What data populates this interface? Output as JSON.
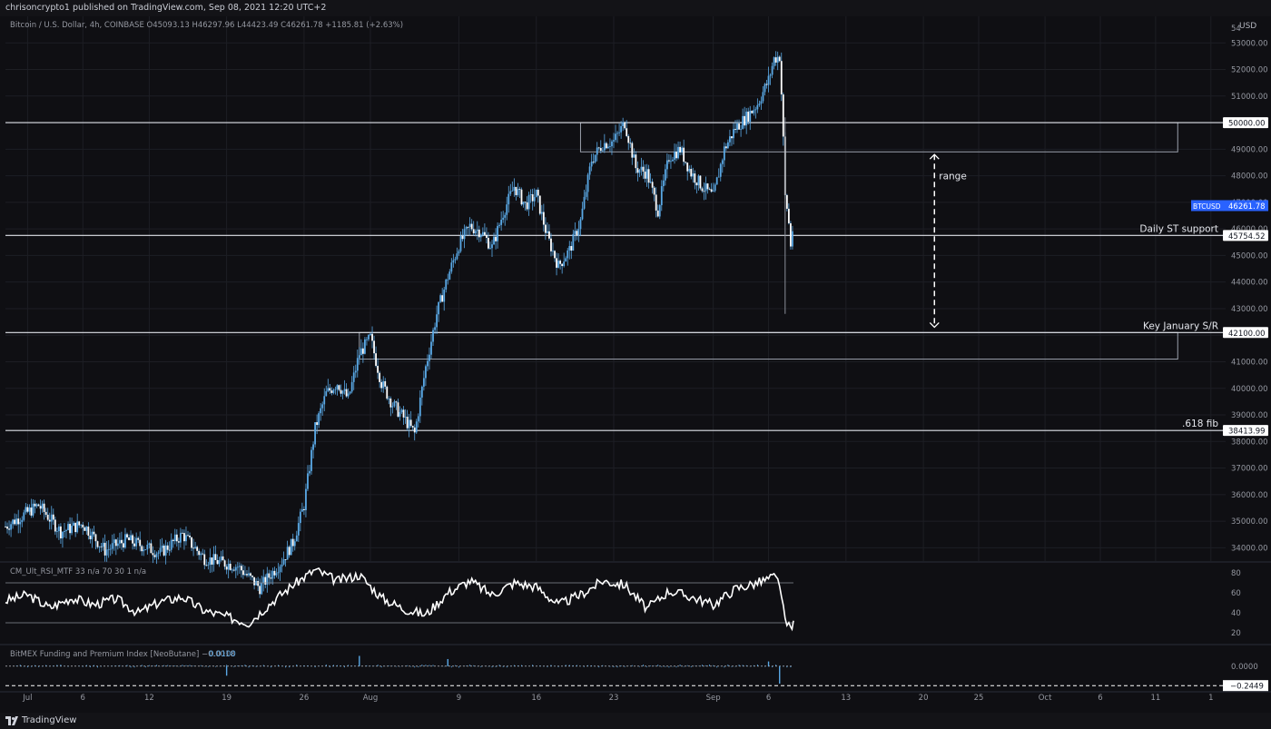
{
  "header": {
    "published": "chrisoncrypto1 published on TradingView.com, Sep 08, 2021 12:20 UTC+2"
  },
  "footer": {
    "brand": "TradingView"
  },
  "legend": {
    "symbol": "Bitcoin / U.S. Dollar, 4h, COINBASE",
    "ohlc": "O45093.13 H46297.96 L44423.49 C46261.78 +1185.81 (+2.63%)",
    "currency": "USD"
  },
  "colors": {
    "background": "#0f0f13",
    "candle": "#5aa9e6",
    "line": "#e0e3ea",
    "grid": "#1d1e24",
    "rsi": "#ffffff",
    "tag": "#2962ff"
  },
  "chart_data": [
    {
      "type": "candlestick",
      "title": "Bitcoin / U.S. Dollar, 4h, COINBASE",
      "ylim": [
        33500,
        54000
      ],
      "yticks": [
        34000,
        35000,
        36000,
        37000,
        38000,
        39000,
        40000,
        41000,
        42000,
        43000,
        44000,
        45000,
        46000,
        47000,
        48000,
        49000,
        50000,
        51000,
        52000,
        53000
      ],
      "ytick_labels": [
        "34000.00",
        "35000.00",
        "36000.00",
        "37000.00",
        "38000.00",
        "39000.00",
        "40000.00",
        "41000.00",
        "42000.00",
        "43000.00",
        "44000.00",
        "45000.00",
        "46000.00",
        "47000.00",
        "48000.00",
        "49000.00",
        "50000.00",
        "51000.00",
        "52000.00",
        "53000.00"
      ],
      "top_partial_label": "54",
      "xlim": [
        "2021-06-29",
        "2021-10-17"
      ],
      "xticks": [
        {
          "label": "Jul",
          "date": "2021-07-01"
        },
        {
          "label": "6",
          "date": "2021-07-06"
        },
        {
          "label": "12",
          "date": "2021-07-12"
        },
        {
          "label": "19",
          "date": "2021-07-19"
        },
        {
          "label": "26",
          "date": "2021-07-26"
        },
        {
          "label": "Aug",
          "date": "2021-08-01"
        },
        {
          "label": "9",
          "date": "2021-08-09"
        },
        {
          "label": "16",
          "date": "2021-08-16"
        },
        {
          "label": "23",
          "date": "2021-08-23"
        },
        {
          "label": "Sep",
          "date": "2021-09-01"
        },
        {
          "label": "6",
          "date": "2021-09-06"
        },
        {
          "label": "13",
          "date": "2021-09-13"
        },
        {
          "label": "20",
          "date": "2021-09-20"
        },
        {
          "label": "25",
          "date": "2021-09-25"
        },
        {
          "label": "Oct",
          "date": "2021-10-01"
        },
        {
          "label": "6",
          "date": "2021-10-06"
        },
        {
          "label": "11",
          "date": "2021-10-11"
        },
        {
          "label": "1",
          "date": "2021-10-16"
        }
      ],
      "price_path": [
        [
          "2021-06-29",
          34800
        ],
        [
          "2021-07-02",
          35600
        ],
        [
          "2021-07-04",
          34600
        ],
        [
          "2021-07-06",
          34900
        ],
        [
          "2021-07-08",
          33900
        ],
        [
          "2021-07-10",
          34300
        ],
        [
          "2021-07-13",
          33800
        ],
        [
          "2021-07-15",
          34500
        ],
        [
          "2021-07-17",
          33600
        ],
        [
          "2021-07-20",
          33300
        ],
        [
          "2021-07-22",
          32500
        ],
        [
          "2021-07-24",
          33500
        ],
        [
          "2021-07-25",
          34200
        ],
        [
          "2021-07-26",
          35600
        ],
        [
          "2021-07-27",
          38500
        ],
        [
          "2021-07-28",
          39800
        ],
        [
          "2021-07-29",
          40200
        ],
        [
          "2021-07-30",
          39600
        ],
        [
          "2021-07-31",
          41300
        ],
        [
          "2021-08-01",
          41900
        ],
        [
          "2021-08-02",
          40200
        ],
        [
          "2021-08-03",
          39400
        ],
        [
          "2021-08-04",
          38900
        ],
        [
          "2021-08-05",
          38300
        ],
        [
          "2021-08-06",
          40800
        ],
        [
          "2021-08-07",
          42800
        ],
        [
          "2021-08-08",
          44200
        ],
        [
          "2021-08-09",
          45400
        ],
        [
          "2021-08-10",
          46100
        ],
        [
          "2021-08-11",
          45900
        ],
        [
          "2021-08-12",
          45300
        ],
        [
          "2021-08-13",
          46600
        ],
        [
          "2021-08-14",
          47600
        ],
        [
          "2021-08-15",
          46900
        ],
        [
          "2021-08-16",
          47300
        ],
        [
          "2021-08-17",
          45700
        ],
        [
          "2021-08-18",
          44600
        ],
        [
          "2021-08-19",
          45200
        ],
        [
          "2021-08-20",
          46300
        ],
        [
          "2021-08-21",
          48600
        ],
        [
          "2021-08-22",
          49200
        ],
        [
          "2021-08-23",
          49300
        ],
        [
          "2021-08-24",
          50000
        ],
        [
          "2021-08-25",
          48300
        ],
        [
          "2021-08-26",
          48100
        ],
        [
          "2021-08-27",
          46700
        ],
        [
          "2021-08-28",
          48700
        ],
        [
          "2021-08-29",
          49000
        ],
        [
          "2021-08-30",
          48100
        ],
        [
          "2021-08-31",
          47600
        ],
        [
          "2021-09-01",
          47200
        ],
        [
          "2021-09-02",
          49000
        ],
        [
          "2021-09-03",
          49800
        ],
        [
          "2021-09-04",
          50200
        ],
        [
          "2021-09-05",
          50700
        ],
        [
          "2021-09-06",
          51600
        ],
        [
          "2021-09-06T12",
          52400
        ],
        [
          "2021-09-07",
          52500
        ],
        [
          "2021-09-07T06",
          50400
        ],
        [
          "2021-09-07T12",
          47200
        ],
        [
          "2021-09-07T18",
          46600
        ],
        [
          "2021-09-08",
          45400
        ],
        [
          "2021-09-08T06",
          46250
        ]
      ],
      "current_price": {
        "symbol": "BTCUSD",
        "label": "46261.78",
        "value": 46261.78
      },
      "levels": [
        {
          "name": "resistance-50000",
          "value": 50000.0,
          "label": "50000.00",
          "from": "2021-06-29"
        },
        {
          "name": "daily-st-support",
          "value": 45754.52,
          "label": "45754.52",
          "from": "2021-06-29",
          "text": "Daily ST support"
        },
        {
          "name": "key-january-sr",
          "value": 42100.0,
          "label": "42100.00",
          "from": "2021-06-29",
          "text": "Key January S/R"
        },
        {
          "name": "fib-618",
          "value": 38413.99,
          "label": "38413.99",
          "from": "2021-06-29",
          "text": ".618 fib"
        }
      ],
      "boxes": [
        {
          "name": "upper-zone",
          "x0": "2021-08-20",
          "x1": "2021-10-13",
          "y0": 48900,
          "y1": 50000
        },
        {
          "name": "lower-zone",
          "x0": "2021-07-31",
          "x1": "2021-10-13",
          "y0": 41100,
          "y1": 42100
        }
      ],
      "range_annotation": {
        "text": "range",
        "x": "2021-09-21",
        "y0": 42300,
        "y1": 48800
      }
    },
    {
      "type": "line",
      "title": "CM_Ult_RSI_MTF 33 n/a 70 30 1 n/a",
      "ylim": [
        10,
        90
      ],
      "yticks": [
        20,
        40,
        60,
        80
      ],
      "ytick_labels": [
        "20",
        "40",
        "60",
        "80"
      ],
      "bands": [
        70,
        30
      ],
      "series": [
        {
          "values": [
            [
              "2021-06-29",
              52
            ],
            [
              "2021-07-01",
              58
            ],
            [
              "2021-07-03",
              45
            ],
            [
              "2021-07-05",
              55
            ],
            [
              "2021-07-07",
              48
            ],
            [
              "2021-07-09",
              54
            ],
            [
              "2021-07-11",
              40
            ],
            [
              "2021-07-13",
              51
            ],
            [
              "2021-07-15",
              56
            ],
            [
              "2021-07-17",
              42
            ],
            [
              "2021-07-19",
              36
            ],
            [
              "2021-07-21",
              30
            ],
            [
              "2021-07-23",
              50
            ],
            [
              "2021-07-25",
              68
            ],
            [
              "2021-07-27",
              83
            ],
            [
              "2021-07-29",
              72
            ],
            [
              "2021-07-31",
              78
            ],
            [
              "2021-08-02",
              55
            ],
            [
              "2021-08-04",
              44
            ],
            [
              "2021-08-06",
              38
            ],
            [
              "2021-08-08",
              60
            ],
            [
              "2021-08-10",
              72
            ],
            [
              "2021-08-12",
              58
            ],
            [
              "2021-08-14",
              70
            ],
            [
              "2021-08-16",
              66
            ],
            [
              "2021-08-18",
              48
            ],
            [
              "2021-08-20",
              58
            ],
            [
              "2021-08-22",
              72
            ],
            [
              "2021-08-24",
              68
            ],
            [
              "2021-08-26",
              44
            ],
            [
              "2021-08-28",
              62
            ],
            [
              "2021-08-30",
              56
            ],
            [
              "2021-09-01",
              48
            ],
            [
              "2021-09-03",
              64
            ],
            [
              "2021-09-05",
              70
            ],
            [
              "2021-09-06T12",
              76
            ],
            [
              "2021-09-07",
              70
            ],
            [
              "2021-09-07T12",
              30
            ],
            [
              "2021-09-08",
              25
            ],
            [
              "2021-09-08T06",
              32
            ]
          ]
        }
      ]
    },
    {
      "type": "bar",
      "title": "BitMEX Funding and Premium Index [NeoButane]",
      "values_text": [
        "−0.0018",
        "0.0100"
      ],
      "ylim": [
        -0.3,
        0.25
      ],
      "yticks": [
        0.0,
        -0.2449
      ],
      "ytick_labels": [
        "0.0000",
        "−0.2449"
      ],
      "spikes": [
        [
          "2021-07-31",
          0.13
        ],
        [
          "2021-08-08",
          0.09
        ],
        [
          "2021-09-06",
          0.06
        ],
        [
          "2021-07-19",
          -0.12
        ],
        [
          "2021-09-07",
          -0.22
        ]
      ]
    }
  ]
}
